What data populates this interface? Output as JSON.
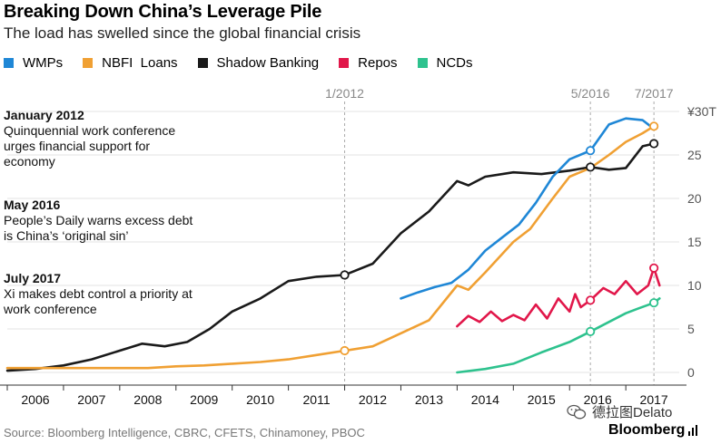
{
  "title": "Breaking Down China’s Leverage Pile",
  "subtitle": "The load has swelled since the global financial crisis",
  "legend": [
    {
      "name": "WMPs",
      "color": "#1f87d6"
    },
    {
      "name": "NBFI  Loans",
      "color": "#f0a033"
    },
    {
      "name": "Shadow Banking",
      "color": "#1a1a1a"
    },
    {
      "name": "Repos",
      "color": "#e1174a"
    },
    {
      "name": "NCDs",
      "color": "#2ec28e"
    }
  ],
  "annotations": [
    {
      "head": "January 2012",
      "body": "Quinquennial work conference urges financial support for economy"
    },
    {
      "head": "May 2016",
      "body": "People’s Daily warns excess debt is China’s ‘original sin’"
    },
    {
      "head": "July 2017",
      "body": "Xi makes debt control a priority at work conference"
    }
  ],
  "source": "Source: Bloomberg Intelligence, CBRC, CFETS, Chinamoney, PBOC",
  "watermark": "德拉图Delato",
  "brand": "Bloomberg",
  "chart_data": {
    "type": "line",
    "title": "Breaking Down China’s Leverage Pile",
    "ylabel": "¥ trillion",
    "ylim": [
      0,
      30
    ],
    "xlim": [
      2006.0,
      2017.95
    ],
    "y_ticks": [
      "0",
      "5",
      "10",
      "15",
      "20",
      "25",
      "¥30T"
    ],
    "y_tick_values": [
      0,
      5,
      10,
      15,
      20,
      25,
      30
    ],
    "x_ticks": [
      "2006",
      "2007",
      "2008",
      "2009",
      "2010",
      "2011",
      "2012",
      "2013",
      "2014",
      "2015",
      "2016",
      "2017"
    ],
    "event_lines": [
      {
        "label": "1/2012",
        "x": 2012.0
      },
      {
        "label": "5/2016",
        "x": 2016.37
      },
      {
        "label": "7/2017",
        "x": 2017.5
      }
    ],
    "series": [
      {
        "name": "Shadow Banking",
        "color": "#1a1a1a",
        "points": [
          [
            2006.0,
            0.2
          ],
          [
            2006.5,
            0.4
          ],
          [
            2007.0,
            0.8
          ],
          [
            2007.5,
            1.5
          ],
          [
            2008.0,
            2.5
          ],
          [
            2008.4,
            3.3
          ],
          [
            2008.8,
            3.0
          ],
          [
            2009.2,
            3.5
          ],
          [
            2009.6,
            5.0
          ],
          [
            2010.0,
            7.0
          ],
          [
            2010.5,
            8.5
          ],
          [
            2011.0,
            10.5
          ],
          [
            2011.5,
            11.0
          ],
          [
            2012.0,
            11.2
          ],
          [
            2012.5,
            12.5
          ],
          [
            2013.0,
            16.0
          ],
          [
            2013.5,
            18.5
          ],
          [
            2014.0,
            22.0
          ],
          [
            2014.2,
            21.5
          ],
          [
            2014.5,
            22.5
          ],
          [
            2015.0,
            23.0
          ],
          [
            2015.5,
            22.8
          ],
          [
            2016.0,
            23.2
          ],
          [
            2016.37,
            23.6
          ],
          [
            2016.7,
            23.3
          ],
          [
            2017.0,
            23.5
          ],
          [
            2017.3,
            26.0
          ],
          [
            2017.5,
            26.3
          ]
        ],
        "markers": [
          [
            2012.0,
            11.2
          ],
          [
            2016.37,
            23.6
          ],
          [
            2017.5,
            26.3
          ]
        ]
      },
      {
        "name": "NBFI  Loans",
        "color": "#f0a033",
        "points": [
          [
            2006.0,
            0.5
          ],
          [
            2006.5,
            0.5
          ],
          [
            2007.0,
            0.5
          ],
          [
            2007.5,
            0.5
          ],
          [
            2008.0,
            0.5
          ],
          [
            2008.5,
            0.5
          ],
          [
            2009.0,
            0.7
          ],
          [
            2009.5,
            0.8
          ],
          [
            2010.0,
            1.0
          ],
          [
            2010.5,
            1.2
          ],
          [
            2011.0,
            1.5
          ],
          [
            2011.5,
            2.0
          ],
          [
            2012.0,
            2.5
          ],
          [
            2012.5,
            3.0
          ],
          [
            2013.0,
            4.5
          ],
          [
            2013.5,
            6.0
          ],
          [
            2014.0,
            10.0
          ],
          [
            2014.2,
            9.5
          ],
          [
            2014.5,
            11.5
          ],
          [
            2015.0,
            15.0
          ],
          [
            2015.3,
            16.5
          ],
          [
            2015.7,
            20.0
          ],
          [
            2016.0,
            22.5
          ],
          [
            2016.37,
            23.5
          ],
          [
            2016.7,
            25.0
          ],
          [
            2017.0,
            26.5
          ],
          [
            2017.3,
            27.5
          ],
          [
            2017.5,
            28.3
          ]
        ],
        "markers": [
          [
            2012.0,
            2.5
          ],
          [
            2017.5,
            28.3
          ]
        ]
      },
      {
        "name": "WMPs",
        "color": "#1f87d6",
        "points": [
          [
            2013.0,
            8.5
          ],
          [
            2013.3,
            9.2
          ],
          [
            2013.6,
            9.8
          ],
          [
            2013.9,
            10.3
          ],
          [
            2014.2,
            11.8
          ],
          [
            2014.5,
            14.0
          ],
          [
            2014.8,
            15.5
          ],
          [
            2015.1,
            17.0
          ],
          [
            2015.4,
            19.5
          ],
          [
            2015.7,
            22.5
          ],
          [
            2016.0,
            24.5
          ],
          [
            2016.37,
            25.5
          ],
          [
            2016.7,
            28.5
          ],
          [
            2017.0,
            29.2
          ],
          [
            2017.3,
            29.0
          ],
          [
            2017.5,
            28.0
          ]
        ],
        "markers": [
          [
            2016.37,
            25.5
          ]
        ]
      },
      {
        "name": "Repos",
        "color": "#e1174a",
        "points": [
          [
            2014.0,
            5.3
          ],
          [
            2014.2,
            6.5
          ],
          [
            2014.4,
            5.8
          ],
          [
            2014.6,
            7.0
          ],
          [
            2014.8,
            5.9
          ],
          [
            2015.0,
            6.6
          ],
          [
            2015.2,
            6.0
          ],
          [
            2015.4,
            7.8
          ],
          [
            2015.6,
            6.2
          ],
          [
            2015.8,
            8.5
          ],
          [
            2016.0,
            7.0
          ],
          [
            2016.1,
            9.0
          ],
          [
            2016.2,
            7.5
          ],
          [
            2016.37,
            8.3
          ],
          [
            2016.6,
            9.7
          ],
          [
            2016.8,
            9.0
          ],
          [
            2017.0,
            10.5
          ],
          [
            2017.2,
            9.0
          ],
          [
            2017.4,
            10.0
          ],
          [
            2017.5,
            12.0
          ],
          [
            2017.55,
            11.0
          ],
          [
            2017.6,
            10.0
          ]
        ],
        "markers": [
          [
            2016.37,
            8.3
          ],
          [
            2017.5,
            12.0
          ]
        ]
      },
      {
        "name": "NCDs",
        "color": "#2ec28e",
        "points": [
          [
            2014.0,
            0.0
          ],
          [
            2014.5,
            0.4
          ],
          [
            2015.0,
            1.0
          ],
          [
            2015.5,
            2.3
          ],
          [
            2016.0,
            3.5
          ],
          [
            2016.37,
            4.7
          ],
          [
            2016.7,
            5.8
          ],
          [
            2017.0,
            6.8
          ],
          [
            2017.2,
            7.3
          ],
          [
            2017.5,
            8.0
          ],
          [
            2017.6,
            8.5
          ]
        ],
        "markers": [
          [
            2016.37,
            4.7
          ],
          [
            2017.5,
            8.0
          ]
        ]
      }
    ]
  }
}
